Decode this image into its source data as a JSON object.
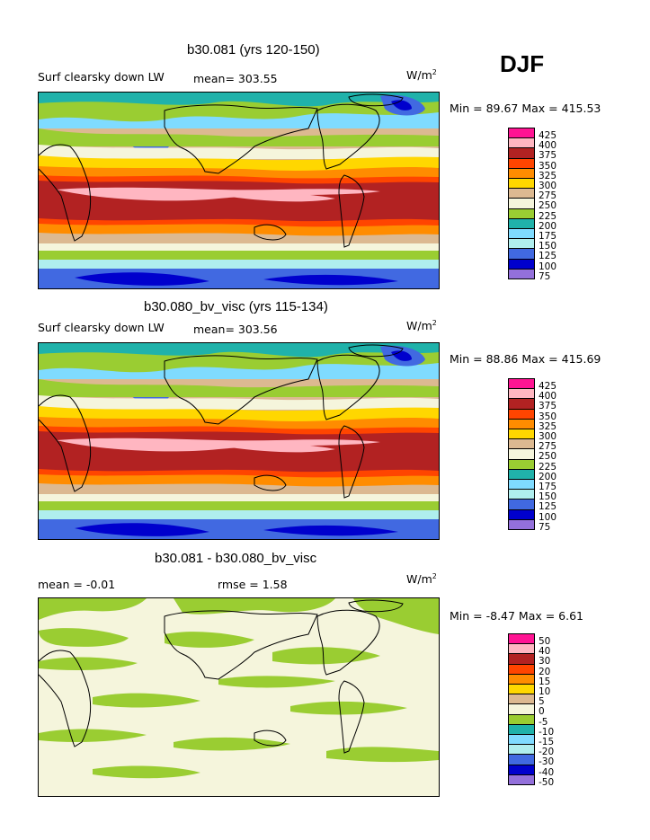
{
  "season": "DJF",
  "panels": [
    {
      "title": "b30.081 (yrs 120-150)",
      "left_label": "Surf clearsky down LW",
      "mid_label": "mean= 303.55",
      "units": "W/m",
      "units_sup": "2",
      "stats": "Min =  89.67 Max = 415.53",
      "levels": [
        "425",
        "400",
        "375",
        "350",
        "325",
        "300",
        "275",
        "250",
        "225",
        "200",
        "175",
        "150",
        "125",
        "100",
        "75"
      ],
      "colors": [
        "#ff1493",
        "#ffb6c1",
        "#b22222",
        "#ff4500",
        "#ff8c00",
        "#ffd700",
        "#dcb991",
        "#f5f5dc",
        "#9acd32",
        "#20b2aa",
        "#7fdbff",
        "#afeeee",
        "#4169e1",
        "#0000cd",
        "#9370db"
      ],
      "kind": "field"
    },
    {
      "title": "b30.080_bv_visc (yrs 115-134)",
      "left_label": "Surf clearsky down LW",
      "mid_label": "mean= 303.56",
      "units": "W/m",
      "units_sup": "2",
      "stats": "Min =  88.86 Max = 415.69",
      "levels": [
        "425",
        "400",
        "375",
        "350",
        "325",
        "300",
        "275",
        "250",
        "225",
        "200",
        "175",
        "150",
        "125",
        "100",
        "75"
      ],
      "colors": [
        "#ff1493",
        "#ffb6c1",
        "#b22222",
        "#ff4500",
        "#ff8c00",
        "#ffd700",
        "#dcb991",
        "#f5f5dc",
        "#9acd32",
        "#20b2aa",
        "#7fdbff",
        "#afeeee",
        "#4169e1",
        "#0000cd",
        "#9370db"
      ],
      "kind": "field"
    },
    {
      "title": "b30.081 - b30.080_bv_visc",
      "left_label": "mean =   -0.01",
      "mid_label": "rmse =    1.58",
      "units": "W/m",
      "units_sup": "2",
      "stats": "Min =  -8.47 Max =    6.61",
      "levels": [
        "50",
        "40",
        "30",
        "20",
        "15",
        "10",
        "5",
        "0",
        "-5",
        "-10",
        "-15",
        "-20",
        "-30",
        "-40",
        "-50"
      ],
      "colors": [
        "#ff1493",
        "#ffb6c1",
        "#b22222",
        "#ff4500",
        "#ff8c00",
        "#ffd700",
        "#dcb991",
        "#f5f5dc",
        "#9acd32",
        "#20b2aa",
        "#7fdbff",
        "#afeeee",
        "#4169e1",
        "#0000cd",
        "#9370db"
      ],
      "kind": "diff"
    }
  ]
}
